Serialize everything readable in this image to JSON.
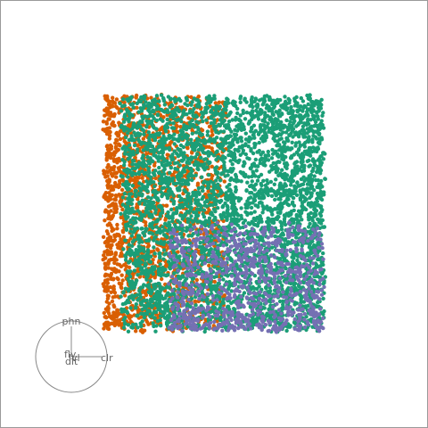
{
  "chart_data": {
    "type": "scatter",
    "title": "",
    "point_radius_note": "",
    "series": [
      {
        "name": "",
        "color": "#d95f02",
        "region": {
          "x": [
            0.0,
            0.55
          ],
          "y": [
            0.0,
            1.0
          ]
        },
        "count": 1800
      },
      {
        "name": "",
        "color": "#1b9e77",
        "region": {
          "x": [
            0.08,
            1.0
          ],
          "y": [
            0.0,
            1.0
          ]
        },
        "count": 4200
      },
      {
        "name": "",
        "color": "#7570b3",
        "region": {
          "x": [
            0.3,
            1.0
          ],
          "y": [
            0.0,
            0.45
          ]
        },
        "count": 900
      }
    ],
    "xlim": [
      0,
      1
    ],
    "ylim": [
      0,
      1
    ],
    "grid": false,
    "legend": "none",
    "axis_glyph": {
      "labels": {
        "top": "phn",
        "right": "clr",
        "center_a": "fly",
        "center_b": "lvl",
        "center_c": "dlt"
      }
    }
  }
}
